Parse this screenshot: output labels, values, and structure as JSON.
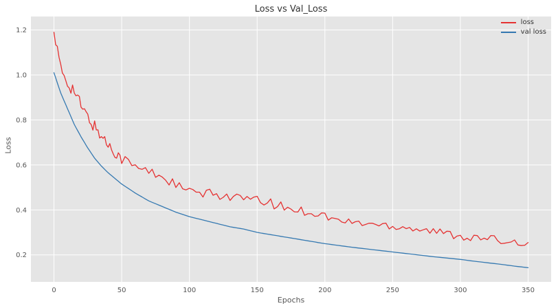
{
  "chart_data": {
    "type": "line",
    "title": "Loss vs Val_Loss",
    "xlabel": "Epochs",
    "ylabel": "Loss",
    "xlim": [
      -17,
      367
    ],
    "ylim": [
      0.08,
      1.26
    ],
    "x_ticks": [
      0,
      50,
      100,
      150,
      200,
      250,
      300,
      350
    ],
    "y_ticks": [
      0.2,
      0.4,
      0.6,
      0.8,
      1.0,
      1.2
    ],
    "grid": true,
    "legend_position": "upper right",
    "x": [
      0,
      5,
      10,
      15,
      20,
      25,
      30,
      35,
      40,
      45,
      50,
      60,
      70,
      80,
      90,
      100,
      110,
      120,
      130,
      140,
      150,
      160,
      170,
      180,
      190,
      200,
      210,
      220,
      230,
      240,
      250,
      260,
      270,
      280,
      290,
      300,
      310,
      320,
      330,
      340,
      350
    ],
    "series": [
      {
        "name": "loss",
        "color": "#e53131",
        "noise_amplitude": 0.022,
        "values": [
          1.19,
          1.02,
          0.97,
          0.93,
          0.86,
          0.81,
          0.77,
          0.73,
          0.69,
          0.66,
          0.63,
          0.59,
          0.57,
          0.55,
          0.51,
          0.48,
          0.47,
          0.47,
          0.46,
          0.45,
          0.44,
          0.43,
          0.41,
          0.4,
          0.39,
          0.375,
          0.35,
          0.345,
          0.34,
          0.335,
          0.33,
          0.325,
          0.315,
          0.305,
          0.295,
          0.285,
          0.275,
          0.27,
          0.265,
          0.26,
          0.255
        ]
      },
      {
        "name": "val loss",
        "color": "#3579b1",
        "noise_amplitude": 0,
        "values": [
          1.01,
          0.92,
          0.85,
          0.78,
          0.725,
          0.675,
          0.63,
          0.595,
          0.565,
          0.54,
          0.515,
          0.475,
          0.44,
          0.415,
          0.39,
          0.37,
          0.355,
          0.34,
          0.325,
          0.315,
          0.3,
          0.29,
          0.28,
          0.27,
          0.26,
          0.25,
          0.242,
          0.234,
          0.227,
          0.22,
          0.213,
          0.206,
          0.199,
          0.192,
          0.186,
          0.18,
          0.172,
          0.165,
          0.158,
          0.15,
          0.143
        ]
      }
    ],
    "styles": {
      "plot_bg": "#e5e5e5",
      "fig_bg": "#ffffff",
      "grid_color": "#ffffff",
      "tick_color": "#555555",
      "title_color": "#333333"
    }
  }
}
